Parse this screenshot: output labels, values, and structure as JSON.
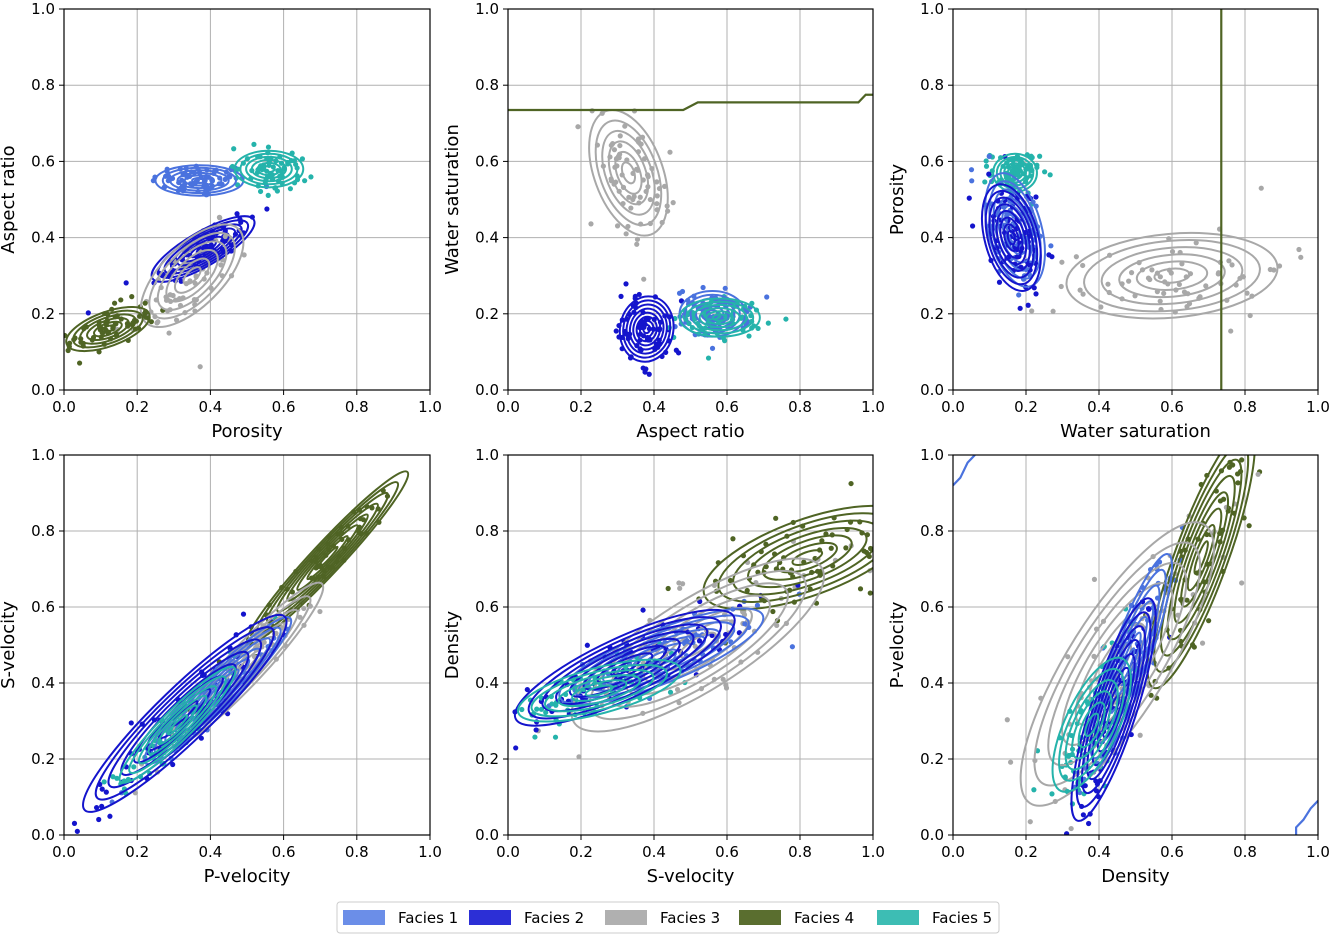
{
  "legend": {
    "entries": [
      {
        "label": "Facies 1",
        "color": "#6b8ee8"
      },
      {
        "label": "Facies 2",
        "color": "#2c2fd6"
      },
      {
        "label": "Facies 3",
        "color": "#b0b0b0"
      },
      {
        "label": "Facies 4",
        "color": "#5a6e2f"
      },
      {
        "label": "Facies 5",
        "color": "#3dbdb4"
      }
    ]
  },
  "facies_colors": {
    "1": "#4a72de",
    "2": "#1414cc",
    "3": "#a8a8a8",
    "4": "#4f6424",
    "5": "#25b3ab"
  },
  "chart_data": [
    {
      "type": "scatter",
      "xlabel": "Porosity",
      "ylabel": "Aspect ratio",
      "xlim": [
        0,
        1
      ],
      "ylim": [
        0,
        1
      ],
      "xticks": [
        "0.0",
        "0.2",
        "0.4",
        "0.6",
        "0.8",
        "1.0"
      ],
      "yticks": [
        "0.0",
        "0.2",
        "0.4",
        "0.6",
        "0.8",
        "1.0"
      ],
      "grid": true,
      "series": [
        {
          "facies": 1,
          "center": [
            0.37,
            0.55
          ],
          "spread": [
            0.12,
            0.04
          ],
          "angle": 0,
          "levels": 6
        },
        {
          "facies": 2,
          "center": [
            0.38,
            0.37
          ],
          "spread": [
            0.16,
            0.045
          ],
          "angle": 30,
          "levels": 8
        },
        {
          "facies": 3,
          "center": [
            0.35,
            0.3
          ],
          "spread": [
            0.18,
            0.08
          ],
          "angle": 45,
          "levels": 6
        },
        {
          "facies": 4,
          "center": [
            0.12,
            0.16
          ],
          "spread": [
            0.12,
            0.045
          ],
          "angle": 20,
          "levels": 6
        },
        {
          "facies": 5,
          "center": [
            0.56,
            0.58
          ],
          "spread": [
            0.05,
            0.09
          ],
          "angle": 90,
          "levels": 6
        }
      ]
    },
    {
      "type": "scatter",
      "xlabel": "Aspect ratio",
      "ylabel": "Water saturation",
      "xlim": [
        0,
        1
      ],
      "ylim": [
        0,
        1
      ],
      "xticks": [
        "0.0",
        "0.2",
        "0.4",
        "0.6",
        "0.8",
        "1.0"
      ],
      "yticks": [
        "0.0",
        "0.2",
        "0.4",
        "0.6",
        "0.8",
        "1.0"
      ],
      "grid": true,
      "series": [
        {
          "facies": 3,
          "center": [
            0.33,
            0.57
          ],
          "spread": [
            0.18,
            0.09
          ],
          "angle": -70,
          "levels": 6
        },
        {
          "facies": 2,
          "center": [
            0.38,
            0.16
          ],
          "spread": [
            0.09,
            0.07
          ],
          "angle": 80,
          "levels": 8
        },
        {
          "facies": 1,
          "center": [
            0.56,
            0.2
          ],
          "spread": [
            0.09,
            0.06
          ],
          "angle": 0,
          "levels": 6
        },
        {
          "facies": 5,
          "center": [
            0.58,
            0.19
          ],
          "spread": [
            0.11,
            0.05
          ],
          "angle": 0,
          "levels": 6
        }
      ],
      "boundary": {
        "facies": 4,
        "points": [
          [
            0.0,
            0.735
          ],
          [
            0.48,
            0.735
          ],
          [
            0.52,
            0.755
          ],
          [
            0.96,
            0.755
          ],
          [
            0.98,
            0.775
          ],
          [
            1.0,
            0.775
          ]
        ]
      }
    },
    {
      "type": "scatter",
      "xlabel": "Water saturation",
      "ylabel": "Porosity",
      "xlim": [
        0,
        1
      ],
      "ylim": [
        0,
        1
      ],
      "xticks": [
        "0.0",
        "0.2",
        "0.4",
        "0.6",
        "0.8",
        "1.0"
      ],
      "yticks": [
        "0.0",
        "0.2",
        "0.4",
        "0.6",
        "0.8",
        "1.0"
      ],
      "grid": true,
      "series": [
        {
          "facies": 5,
          "center": [
            0.17,
            0.57
          ],
          "spread": [
            0.06,
            0.05
          ],
          "angle": 0,
          "levels": 6
        },
        {
          "facies": 1,
          "center": [
            0.17,
            0.42
          ],
          "spread": [
            0.16,
            0.07
          ],
          "angle": -75,
          "levels": 7
        },
        {
          "facies": 2,
          "center": [
            0.16,
            0.4
          ],
          "spread": [
            0.15,
            0.07
          ],
          "angle": -75,
          "levels": 8
        },
        {
          "facies": 3,
          "center": [
            0.6,
            0.3
          ],
          "spread": [
            0.29,
            0.11
          ],
          "angle": 5,
          "levels": 6
        }
      ],
      "boundary": {
        "facies": 4,
        "points": [
          [
            0.735,
            0.0
          ],
          [
            0.735,
            1.0
          ]
        ]
      }
    },
    {
      "type": "scatter",
      "xlabel": "P-velocity",
      "ylabel": "S-velocity",
      "xlim": [
        0,
        1
      ],
      "ylim": [
        0,
        1
      ],
      "xticks": [
        "0.0",
        "0.2",
        "0.4",
        "0.6",
        "0.8",
        "1.0"
      ],
      "yticks": [
        "0.0",
        "0.2",
        "0.4",
        "0.6",
        "0.8",
        "1.0"
      ],
      "grid": true,
      "series": [
        {
          "facies": 4,
          "center": [
            0.72,
            0.73
          ],
          "spread": [
            0.32,
            0.04
          ],
          "angle": 47,
          "levels": 8
        },
        {
          "facies": 3,
          "center": [
            0.5,
            0.45
          ],
          "spread": [
            0.3,
            0.05
          ],
          "angle": 47,
          "levels": 6
        },
        {
          "facies": 1,
          "center": [
            0.42,
            0.38
          ],
          "spread": [
            0.28,
            0.045
          ],
          "angle": 45,
          "levels": 7
        },
        {
          "facies": 2,
          "center": [
            0.33,
            0.32
          ],
          "spread": [
            0.38,
            0.07
          ],
          "angle": 44,
          "levels": 8
        },
        {
          "facies": 5,
          "center": [
            0.31,
            0.29
          ],
          "spread": [
            0.22,
            0.04
          ],
          "angle": 45,
          "levels": 6
        }
      ]
    },
    {
      "type": "scatter",
      "xlabel": "S-velocity",
      "ylabel": "Density",
      "xlim": [
        0,
        1
      ],
      "ylim": [
        0,
        1
      ],
      "xticks": [
        "0.0",
        "0.2",
        "0.4",
        "0.6",
        "0.8",
        "1.0"
      ],
      "yticks": [
        "0.0",
        "0.2",
        "0.4",
        "0.6",
        "0.8",
        "1.0"
      ],
      "grid": true,
      "series": [
        {
          "facies": 4,
          "center": [
            0.82,
            0.73
          ],
          "spread": [
            0.3,
            0.1
          ],
          "angle": 20,
          "levels": 7
        },
        {
          "facies": 3,
          "center": [
            0.52,
            0.5
          ],
          "spread": [
            0.4,
            0.12
          ],
          "angle": 32,
          "levels": 7
        },
        {
          "facies": 1,
          "center": [
            0.42,
            0.47
          ],
          "spread": [
            0.3,
            0.07
          ],
          "angle": 22,
          "levels": 7
        },
        {
          "facies": 2,
          "center": [
            0.32,
            0.44
          ],
          "spread": [
            0.33,
            0.08
          ],
          "angle": 25,
          "levels": 8
        },
        {
          "facies": 5,
          "center": [
            0.25,
            0.38
          ],
          "spread": [
            0.23,
            0.06
          ],
          "angle": 15,
          "levels": 6
        }
      ]
    },
    {
      "type": "scatter",
      "xlabel": "Density",
      "ylabel": "P-velocity",
      "xlim": [
        0,
        1
      ],
      "ylim": [
        0,
        1
      ],
      "xticks": [
        "0.0",
        "0.2",
        "0.4",
        "0.6",
        "0.8",
        "1.0"
      ],
      "yticks": [
        "0.0",
        "0.2",
        "0.4",
        "0.6",
        "0.8",
        "1.0"
      ],
      "grid": true,
      "series": [
        {
          "facies": 4,
          "center": [
            0.68,
            0.73
          ],
          "spread": [
            0.38,
            0.07
          ],
          "angle": 70,
          "levels": 8
        },
        {
          "facies": 3,
          "center": [
            0.45,
            0.45
          ],
          "spread": [
            0.45,
            0.13
          ],
          "angle": 58,
          "levels": 7
        },
        {
          "facies": 1,
          "center": [
            0.48,
            0.45
          ],
          "spread": [
            0.32,
            0.05
          ],
          "angle": 70,
          "levels": 7
        },
        {
          "facies": 2,
          "center": [
            0.44,
            0.33
          ],
          "spread": [
            0.32,
            0.06
          ],
          "angle": 72,
          "levels": 8
        },
        {
          "facies": 5,
          "center": [
            0.38,
            0.29
          ],
          "spread": [
            0.2,
            0.07
          ],
          "angle": 65,
          "levels": 6
        }
      ],
      "boundary": {
        "facies": 1,
        "points": [
          [
            0.0,
            0.92
          ],
          [
            0.02,
            0.94
          ],
          [
            0.04,
            0.98
          ],
          [
            0.06,
            1.0
          ]
        ],
        "extra": [
          [
            0.94,
            0.0
          ],
          [
            0.94,
            0.02
          ],
          [
            0.96,
            0.04
          ],
          [
            0.98,
            0.07
          ],
          [
            1.0,
            0.09
          ]
        ]
      }
    }
  ]
}
